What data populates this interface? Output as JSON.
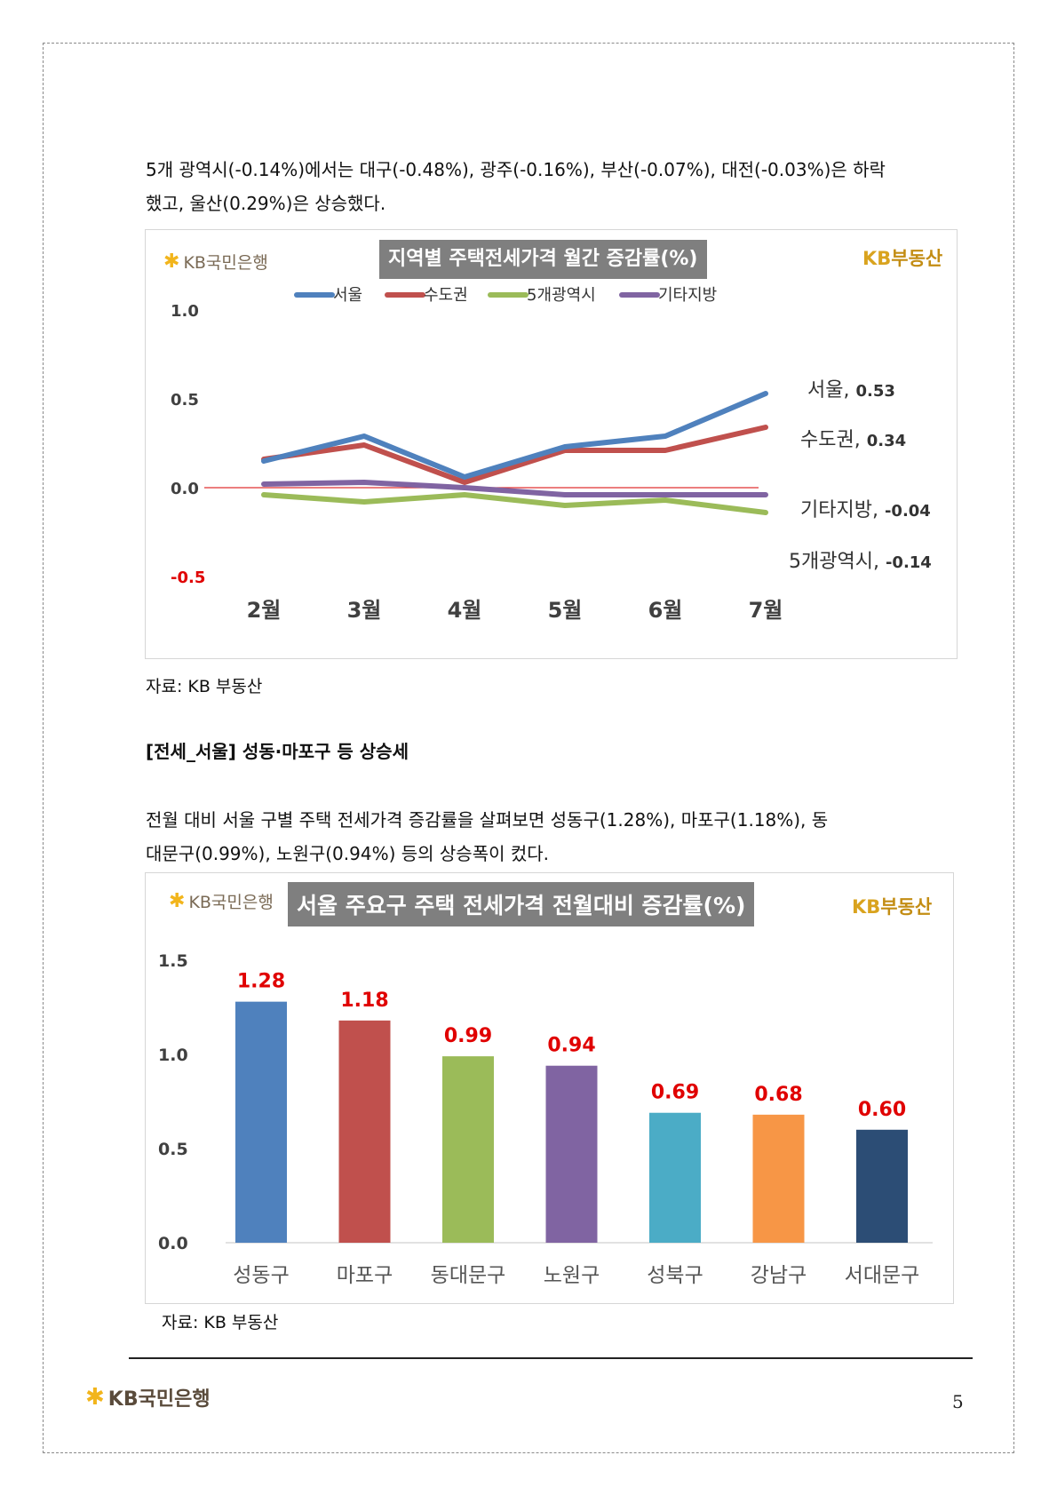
{
  "paragraphs": {
    "p1_line1": "5개 광역시(-0.14%)에서는 대구(-0.48%), 광주(-0.16%), 부산(-0.07%), 대전(-0.03%)은 하락",
    "p1_line2": "했고, 울산(0.29%)은 상승했다.",
    "heading": "[전세_서울] 성동·마포구 등 상승세",
    "p2_line1": "전월 대비 서울 구별 주택 전세가격 증감률을 살펴보면 성동구(1.28%), 마포구(1.18%), 동",
    "p2_line2": "대문구(0.99%), 노원구(0.94%) 등의 상승폭이 컸다."
  },
  "source_label_1": "자료: KB 부동산",
  "source_label_2": "자료: KB 부동산",
  "logo": {
    "bank": "KB국민은행",
    "brand_kb": "KB",
    "brand_name": "부동산"
  },
  "footer": {
    "logo_text": "KB국민은행",
    "page_number": "5"
  },
  "chart_data": [
    {
      "type": "line",
      "title": "지역별 주택전세가격 월간 증감률(%)",
      "categories": [
        "2월",
        "3월",
        "4월",
        "5월",
        "6월",
        "7월"
      ],
      "ylim": [
        -0.5,
        1.0
      ],
      "yticks": [
        "1.0",
        "0.5",
        "0.0",
        "-0.5"
      ],
      "legend_position": "top",
      "series": [
        {
          "name": "서울",
          "color": "#4f81bd",
          "values": [
            0.15,
            0.29,
            0.06,
            0.23,
            0.29,
            0.53
          ],
          "end_label": "서울, 0.53"
        },
        {
          "name": "수도권",
          "color": "#c0504d",
          "values": [
            0.16,
            0.24,
            0.03,
            0.21,
            0.21,
            0.34
          ],
          "end_label": "수도권, 0.34"
        },
        {
          "name": "5개광역시",
          "color": "#9bbb59",
          "values": [
            -0.04,
            -0.08,
            -0.04,
            -0.1,
            -0.07,
            -0.14
          ],
          "end_label": "5개광역시, -0.14"
        },
        {
          "name": "기타지방",
          "color": "#8064a2",
          "values": [
            0.02,
            0.03,
            0.0,
            -0.04,
            -0.04,
            -0.04
          ],
          "end_label": "기타지방, -0.04"
        }
      ]
    },
    {
      "type": "bar",
      "title": "서울 주요구 주택 전세가격 전월대비 증감률(%)",
      "categories": [
        "성동구",
        "마포구",
        "동대문구",
        "노원구",
        "성북구",
        "강남구",
        "서대문구"
      ],
      "values": [
        1.28,
        1.18,
        0.99,
        0.94,
        0.69,
        0.68,
        0.6
      ],
      "value_labels": [
        "1.28",
        "1.18",
        "0.99",
        "0.94",
        "0.69",
        "0.68",
        "0.60"
      ],
      "colors": [
        "#4f81bd",
        "#c0504d",
        "#9bbb59",
        "#8064a2",
        "#4bacc6",
        "#f79646",
        "#2c4d75"
      ],
      "ylim": [
        0,
        1.5
      ],
      "yticks": [
        "1.5",
        "1.0",
        "0.5",
        "0.0"
      ]
    }
  ]
}
